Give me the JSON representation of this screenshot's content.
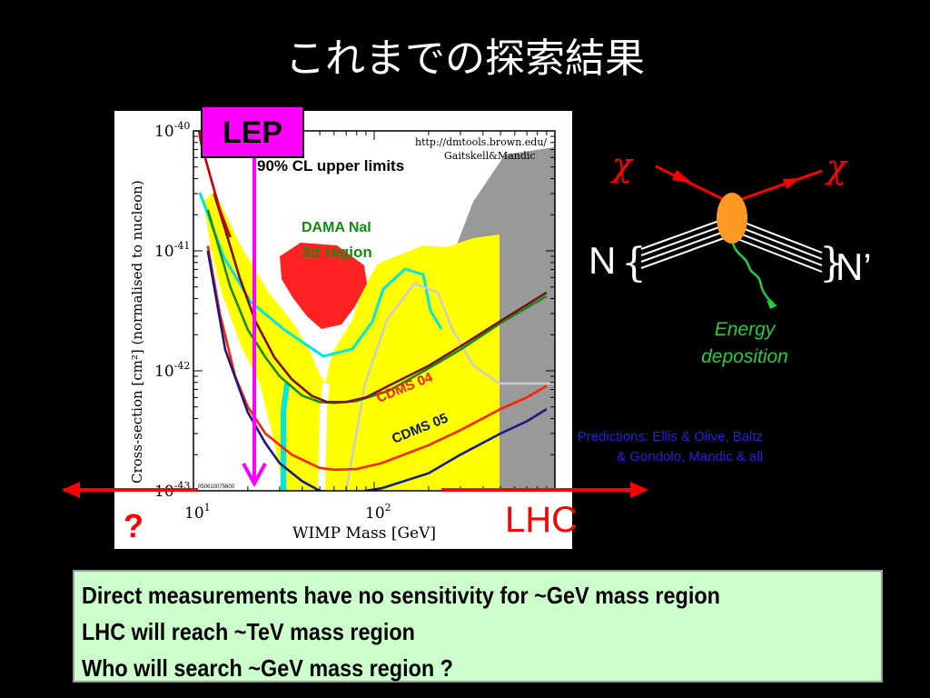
{
  "title": "これまでの探索結果",
  "chart_data": {
    "type": "line",
    "title": "90% CL upper limits",
    "source": [
      "http://dmtools.brown.edu/",
      "Gaitskell&Mandic"
    ],
    "xlabel": "WIMP Mass [GeV]",
    "ylabel": "Cross-section [cm²] (normalised to nucleon)",
    "xscale": "log",
    "yscale": "log",
    "xlim": [
      10,
      1000
    ],
    "ylim": [
      1e-43,
      1e-40
    ],
    "x_ticks": [
      {
        "mant": "10",
        "exp": "1",
        "value": 10
      },
      {
        "mant": "10",
        "exp": "2",
        "value": 100
      }
    ],
    "y_ticks": [
      {
        "mant": "10",
        "exp": "-40",
        "value": 1e-40
      },
      {
        "mant": "10",
        "exp": "-41",
        "value": 1e-41
      },
      {
        "mant": "10",
        "exp": "-42",
        "value": 1e-42
      },
      {
        "mant": "10",
        "exp": "-43",
        "value": 1e-43
      }
    ],
    "stamp": "050610075600",
    "series": [
      {
        "name": "CDMS 04",
        "color": "#ff2200",
        "x": [
          12,
          14,
          17,
          20,
          25,
          35,
          50,
          60,
          80,
          110,
          200,
          300,
          500,
          700,
          900
        ],
        "y": [
          1.1e-41,
          3e-42,
          9e-43,
          5e-43,
          3e-43,
          2e-43,
          1.55e-43,
          1.5e-43,
          1.52e-43,
          1.7e-43,
          2.4e-43,
          3.2e-43,
          4.8e-43,
          6e-43,
          7.5e-43
        ]
      },
      {
        "name": "CDMS 05",
        "color": "#1a1a80",
        "x": [
          12,
          15,
          20,
          25,
          30,
          40,
          50,
          60,
          80,
          110,
          200,
          300,
          500,
          700,
          900
        ],
        "y": [
          1e-41,
          1.5e-42,
          4.5e-43,
          2.5e-43,
          1.7e-43,
          1.2e-43,
          1e-43,
          9.5e-44,
          9.7e-44,
          1.05e-43,
          1.4e-43,
          2e-43,
          3e-43,
          3.8e-43,
          4.8e-43
        ]
      },
      {
        "name": "",
        "color": "#1a8a1a",
        "x": [
          12,
          14,
          16,
          20,
          25,
          30,
          40,
          50,
          60,
          80,
          120,
          200,
          300,
          500,
          900
        ],
        "y": [
          2.2e-41,
          1e-41,
          5e-42,
          2.2e-42,
          1.3e-42,
          9e-43,
          6.2e-43,
          5.5e-43,
          5.4e-43,
          5.6e-43,
          6.8e-43,
          1.05e-42,
          1.5e-42,
          2.5e-42,
          4.2e-42
        ]
      },
      {
        "name": "",
        "color": "#7a1010",
        "x": [
          13,
          15,
          18,
          22,
          28,
          35,
          45,
          55,
          70,
          90,
          120,
          200,
          300,
          500,
          900
        ],
        "y": [
          3e-41,
          1.5e-41,
          6e-42,
          2.6e-42,
          1.3e-42,
          8.5e-43,
          6.2e-43,
          5.5e-43,
          5.5e-43,
          6e-43,
          7.5e-43,
          1.1e-42,
          1.6e-42,
          2.6e-42,
          4.5e-42
        ]
      },
      {
        "name": "",
        "color": "#cc0000",
        "x": [
          10,
          11,
          12.5,
          14,
          16
        ],
        "y": [
          2e-40,
          8e-41,
          4e-41,
          2.2e-41,
          1.3e-41
        ]
      }
    ],
    "regions": [
      {
        "name": "DAMA NaI",
        "sublabel": "3σ region",
        "color": "#ff2222"
      },
      {
        "name": "",
        "color": "#ffff00"
      },
      {
        "name": "",
        "color": "#999999"
      }
    ],
    "annotations": [
      {
        "text": "LEP",
        "kind": "mass-limit-arrow",
        "color": "#ff00ff"
      },
      {
        "text": "LHC",
        "kind": "range-arrow",
        "color": "#ff0000"
      },
      {
        "text": "?",
        "kind": "range-arrow",
        "color": "#ff0000"
      }
    ]
  },
  "diagram": {
    "chi_in": "χ",
    "chi_out": "χ",
    "nucleus_in": "N",
    "nucleus_out": "N’",
    "energy_label_1": "Energy",
    "energy_label_2": "deposition",
    "colors": {
      "chi": "#ff0000",
      "vertex": "#ff9922",
      "nucleus": "#ffffff",
      "energy": "#22cc44"
    }
  },
  "predictions": {
    "line1": "Predictions: Ellis & Olive, Baltz",
    "line2": "& Gondolo, Mandic & all"
  },
  "summary": {
    "line1": "Direct measurements have no sensitivity for ~GeV mass region",
    "line2": "LHC will reach ~TeV mass region",
    "line3": "Who will search ~GeV mass region ?"
  }
}
